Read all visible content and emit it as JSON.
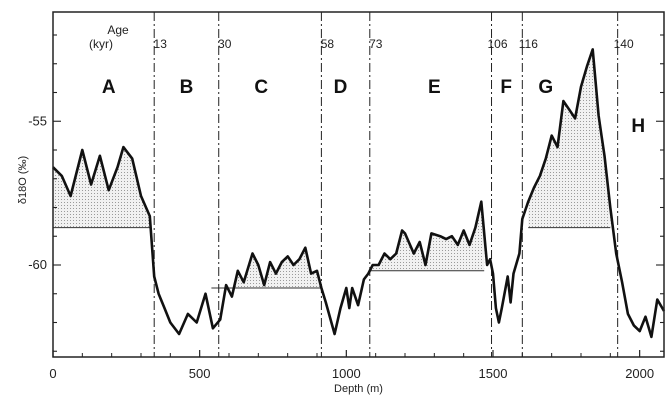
{
  "chart_data": {
    "type": "line",
    "xlabel": "Depth (m)",
    "ylabel": "δ18O (‰)",
    "xlim": [
      0,
      2083
    ],
    "ylim": [
      -63.2,
      -51.2
    ],
    "x_ticks": [
      0,
      500,
      1000,
      1500,
      2000
    ],
    "x_tick_labels": [
      "0",
      "500",
      "1000",
      "1500",
      "2000"
    ],
    "y_ticks": [
      -55,
      -60
    ],
    "y_tick_labels": [
      "-55",
      "-60"
    ],
    "age_label": "Age",
    "age_unit_label": "(kyr)",
    "age_markers": [
      {
        "label": "13",
        "depth": 345
      },
      {
        "label": "30",
        "depth": 565
      },
      {
        "label": "58",
        "depth": 915
      },
      {
        "label": "73",
        "depth": 1080
      },
      {
        "label": "106",
        "depth": 1495
      },
      {
        "label": "116",
        "depth": 1600
      },
      {
        "label": "140",
        "depth": 1925
      }
    ],
    "zones": [
      {
        "label": "A",
        "depth": 190
      },
      {
        "label": "B",
        "depth": 455
      },
      {
        "label": "C",
        "depth": 710
      },
      {
        "label": "D",
        "depth": 980
      },
      {
        "label": "E",
        "depth": 1300
      },
      {
        "label": "F",
        "depth": 1545
      },
      {
        "label": "G",
        "depth": 1680
      },
      {
        "label": "H",
        "depth": 1995
      }
    ],
    "shaded_regions": [
      {
        "from": 0,
        "to": 330,
        "baseline": -58.7
      },
      {
        "from": 540,
        "to": 915,
        "baseline": -60.8
      },
      {
        "from": 1080,
        "to": 1470,
        "baseline": -60.2
      },
      {
        "from": 1620,
        "to": 1900,
        "baseline": -58.7
      }
    ],
    "series": [
      {
        "x": [
          0,
          30,
          60,
          100,
          130,
          160,
          190,
          220,
          240,
          270,
          300,
          330,
          345,
          360,
          380,
          400,
          430,
          460,
          490,
          520,
          545,
          570,
          590,
          610,
          630,
          650,
          680,
          700,
          720,
          740,
          760,
          780,
          800,
          820,
          840,
          860,
          880,
          900,
          915,
          930,
          960,
          980,
          1000,
          1010,
          1020,
          1040,
          1060,
          1075,
          1090,
          1110,
          1130,
          1150,
          1170,
          1190,
          1200,
          1230,
          1250,
          1270,
          1290,
          1320,
          1340,
          1360,
          1380,
          1400,
          1420,
          1440,
          1460,
          1480,
          1490,
          1500,
          1510,
          1520,
          1530,
          1550,
          1560,
          1570,
          1590,
          1600,
          1620,
          1640,
          1660,
          1680,
          1700,
          1720,
          1740,
          1760,
          1780,
          1800,
          1820,
          1840,
          1860,
          1870,
          1880,
          1900,
          1920,
          1940,
          1960,
          1980,
          2000,
          2020,
          2040,
          2060,
          2083
        ],
        "y": [
          -56.6,
          -56.9,
          -57.6,
          -56.0,
          -57.2,
          -56.2,
          -57.4,
          -56.6,
          -55.9,
          -56.3,
          -57.6,
          -58.3,
          -60.4,
          -61.0,
          -61.5,
          -62.0,
          -62.4,
          -61.7,
          -62.0,
          -61.0,
          -62.2,
          -61.9,
          -60.7,
          -61.1,
          -60.2,
          -60.6,
          -59.6,
          -60.0,
          -60.7,
          -59.9,
          -60.3,
          -59.9,
          -59.7,
          -60.0,
          -59.8,
          -59.4,
          -60.3,
          -60.2,
          -60.8,
          -61.3,
          -62.4,
          -61.5,
          -60.8,
          -61.5,
          -60.8,
          -61.4,
          -60.5,
          -60.3,
          -60.0,
          -60.0,
          -59.6,
          -59.8,
          -59.6,
          -58.8,
          -58.9,
          -59.6,
          -59.2,
          -60.0,
          -58.9,
          -59.0,
          -59.1,
          -59.0,
          -59.3,
          -58.8,
          -59.3,
          -58.7,
          -57.8,
          -60.0,
          -59.8,
          -60.3,
          -61.5,
          -62.0,
          -61.5,
          -60.4,
          -61.3,
          -60.3,
          -59.6,
          -58.4,
          -57.8,
          -57.3,
          -56.9,
          -56.3,
          -55.5,
          -55.9,
          -54.3,
          -54.6,
          -54.9,
          -53.8,
          -53.1,
          -52.5,
          -54.8,
          -55.5,
          -56.2,
          -58.0,
          -59.6,
          -60.6,
          -61.7,
          -62.1,
          -62.3,
          -61.8,
          -62.5,
          -61.2,
          -61.6
        ]
      }
    ],
    "grid": false
  }
}
